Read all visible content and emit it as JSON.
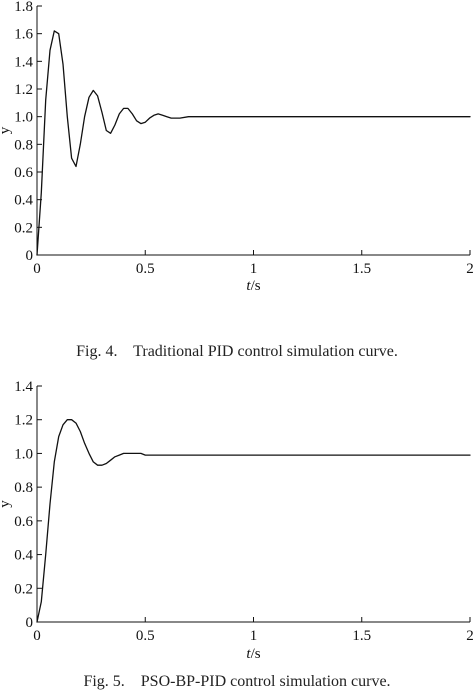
{
  "chart_data": [
    {
      "type": "line",
      "caption": "Fig. 4.    Traditional PID control simulation curve.",
      "xlabel_italic": "t",
      "xlabel_rest": "/s",
      "ylabel": "y",
      "xlim": [
        0,
        2
      ],
      "ylim": [
        0,
        1.8
      ],
      "xticks": [
        0,
        0.5,
        1,
        1.5,
        2
      ],
      "xtick_labels": [
        "0",
        "0.5",
        "1",
        "1.5",
        "2"
      ],
      "yticks": [
        0,
        0.2,
        0.4,
        0.6,
        0.8,
        1.0,
        1.2,
        1.4,
        1.6,
        1.8
      ],
      "ytick_labels": [
        "0",
        "0.2",
        "0.4",
        "0.6",
        "0.8",
        "1.0",
        "1.2",
        "1.4",
        "1.6",
        "1.8"
      ],
      "grid": false,
      "series": [
        {
          "x": [
            0,
            0.02,
            0.04,
            0.06,
            0.08,
            0.1,
            0.12,
            0.14,
            0.16,
            0.18,
            0.2,
            0.22,
            0.24,
            0.26,
            0.28,
            0.3,
            0.32,
            0.34,
            0.36,
            0.38,
            0.4,
            0.42,
            0.44,
            0.46,
            0.48,
            0.5,
            0.52,
            0.54,
            0.56,
            0.58,
            0.6,
            0.62,
            0.64,
            0.66,
            0.7,
            0.74,
            0.8,
            0.85,
            0.9,
            1.0,
            1.2,
            1.5,
            2.0
          ],
          "y": [
            0.0,
            0.45,
            1.12,
            1.48,
            1.62,
            1.6,
            1.38,
            1.0,
            0.7,
            0.64,
            0.8,
            1.0,
            1.14,
            1.19,
            1.15,
            1.03,
            0.9,
            0.88,
            0.94,
            1.02,
            1.06,
            1.06,
            1.02,
            0.97,
            0.95,
            0.96,
            0.99,
            1.01,
            1.02,
            1.01,
            1.0,
            0.99,
            0.99,
            0.99,
            1.0,
            1.0,
            1.0,
            1.0,
            1.0,
            1.0,
            1.0,
            1.0,
            1.0
          ]
        }
      ]
    },
    {
      "type": "line",
      "caption": "Fig. 5.    PSO-BP-PID control simulation curve.",
      "xlabel_italic": "t",
      "xlabel_rest": "/s",
      "ylabel": "y",
      "xlim": [
        0,
        2
      ],
      "ylim": [
        0,
        1.4
      ],
      "xticks": [
        0,
        0.5,
        1,
        1.5,
        2
      ],
      "xtick_labels": [
        "0",
        "0.5",
        "1",
        "1.5",
        "2"
      ],
      "yticks": [
        0,
        0.2,
        0.4,
        0.6,
        0.8,
        1.0,
        1.2,
        1.4
      ],
      "ytick_labels": [
        "0",
        "0.2",
        "0.4",
        "0.6",
        "0.8",
        "1.0",
        "1.2",
        "1.4"
      ],
      "grid": false,
      "series": [
        {
          "x": [
            0,
            0.02,
            0.04,
            0.06,
            0.08,
            0.1,
            0.12,
            0.14,
            0.16,
            0.18,
            0.2,
            0.22,
            0.24,
            0.26,
            0.28,
            0.3,
            0.32,
            0.34,
            0.36,
            0.38,
            0.4,
            0.42,
            0.44,
            0.46,
            0.48,
            0.5,
            0.55,
            0.6,
            0.65,
            0.7,
            0.8,
            1.0,
            1.5,
            2.0
          ],
          "y": [
            0.0,
            0.12,
            0.4,
            0.7,
            0.95,
            1.1,
            1.17,
            1.2,
            1.2,
            1.18,
            1.13,
            1.06,
            1.0,
            0.95,
            0.93,
            0.93,
            0.94,
            0.96,
            0.98,
            0.99,
            1.0,
            1.0,
            1.0,
            1.0,
            1.0,
            0.99,
            0.99,
            0.99,
            0.99,
            0.99,
            0.99,
            0.99,
            0.99,
            0.99
          ]
        }
      ]
    }
  ]
}
